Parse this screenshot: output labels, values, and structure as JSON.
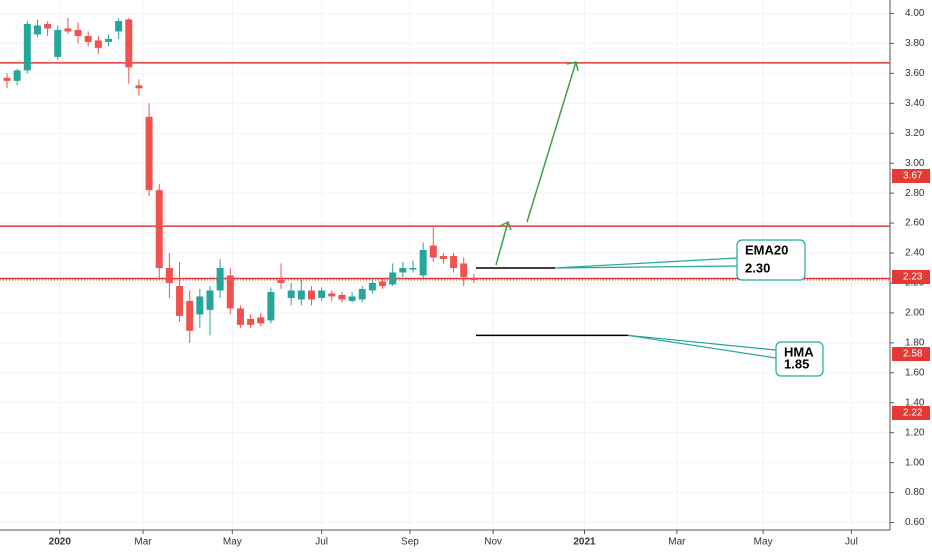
{
  "chart_data": {
    "type": "candlestick",
    "x": [
      0,
      1,
      2,
      3,
      4,
      5,
      6,
      7,
      8,
      9,
      10,
      11,
      12,
      13,
      14,
      15,
      16,
      17,
      18,
      19,
      20,
      21,
      22,
      23,
      24,
      25,
      26,
      27,
      28,
      29,
      30,
      31,
      32,
      33,
      34,
      35,
      36,
      37,
      38,
      39,
      40,
      41,
      42,
      43,
      44,
      45,
      46
    ],
    "open": [
      3.57,
      3.55,
      3.62,
      3.86,
      3.93,
      3.71,
      3.9,
      3.89,
      3.85,
      3.82,
      3.81,
      3.88,
      3.96,
      3.52,
      3.31,
      2.82,
      2.3,
      2.18,
      2.08,
      1.99,
      2.02,
      2.15,
      2.25,
      2.03,
      1.96,
      1.97,
      1.95,
      2.22,
      2.1,
      2.09,
      2.15,
      2.1,
      2.13,
      2.12,
      2.08,
      2.09,
      2.15,
      2.21,
      2.19,
      2.27,
      2.29,
      2.25,
      2.45,
      2.38,
      2.38,
      2.33,
      2.23
    ],
    "high": [
      3.6,
      3.63,
      3.95,
      3.96,
      3.95,
      3.92,
      3.97,
      3.94,
      3.88,
      3.85,
      3.86,
      3.97,
      3.97,
      3.56,
      3.4,
      2.86,
      2.4,
      2.34,
      2.15,
      2.16,
      2.18,
      2.36,
      2.3,
      2.05,
      1.99,
      2.0,
      2.17,
      2.33,
      2.2,
      2.22,
      2.18,
      2.17,
      2.15,
      2.14,
      2.14,
      2.18,
      2.22,
      2.23,
      2.33,
      2.34,
      2.35,
      2.47,
      2.57,
      2.4,
      2.4,
      2.37,
      2.26
    ],
    "low": [
      3.5,
      3.52,
      3.6,
      3.84,
      3.85,
      3.69,
      3.86,
      3.8,
      3.78,
      3.73,
      3.78,
      3.83,
      3.53,
      3.45,
      2.78,
      2.22,
      2.1,
      1.94,
      1.8,
      1.9,
      1.85,
      2.1,
      1.99,
      1.9,
      1.9,
      1.91,
      1.93,
      2.16,
      2.05,
      2.05,
      2.05,
      2.08,
      2.08,
      2.07,
      2.07,
      2.07,
      2.13,
      2.16,
      2.18,
      2.24,
      2.27,
      2.23,
      2.34,
      2.33,
      2.27,
      2.18,
      2.2
    ],
    "close": [
      3.55,
      3.62,
      3.93,
      3.92,
      3.9,
      3.89,
      3.88,
      3.85,
      3.81,
      3.77,
      3.83,
      3.95,
      3.64,
      3.5,
      2.82,
      2.3,
      2.2,
      1.98,
      1.88,
      2.11,
      2.15,
      2.3,
      2.03,
      1.92,
      1.92,
      1.93,
      2.14,
      2.2,
      2.15,
      2.15,
      2.09,
      2.15,
      2.11,
      2.09,
      2.11,
      2.16,
      2.2,
      2.18,
      2.27,
      2.3,
      2.3,
      2.42,
      2.37,
      2.36,
      2.3,
      2.24,
      2.22
    ],
    "up_color": "#26a69a",
    "down_color": "#ef5350",
    "xlim": [
      -0.69,
      87.0
    ],
    "xticks": [
      {
        "value": 5.2,
        "label": "2020"
      },
      {
        "value": 13.4,
        "label": "Mar"
      },
      {
        "value": 22.2,
        "label": "May"
      },
      {
        "value": 31.0,
        "label": "Jul"
      },
      {
        "value": 39.7,
        "label": "Sep"
      },
      {
        "value": 47.9,
        "label": "Nov"
      },
      {
        "value": 56.9,
        "label": "2021"
      },
      {
        "value": 66.0,
        "label": "Mar"
      },
      {
        "value": 74.5,
        "label": "May"
      },
      {
        "value": 83.2,
        "label": "Jul"
      }
    ],
    "ylim": [
      0.55,
      4.09
    ],
    "yticks": [
      {
        "value": 0.6,
        "label": "0.60"
      },
      {
        "value": 0.8,
        "label": "0.80"
      },
      {
        "value": 1.0,
        "label": "1.00"
      },
      {
        "value": 1.2,
        "label": "1.20"
      },
      {
        "value": 1.4,
        "label": "1.40"
      },
      {
        "value": 1.6,
        "label": "1.60"
      },
      {
        "value": 1.8,
        "label": "1.80"
      },
      {
        "value": 2.0,
        "label": "2.00"
      },
      {
        "value": 2.2,
        "label": "2.20"
      },
      {
        "value": 2.4,
        "label": "2.40"
      },
      {
        "value": 2.6,
        "label": "2.60"
      },
      {
        "value": 2.8,
        "label": "2.80"
      },
      {
        "value": 3.0,
        "label": "3.00"
      },
      {
        "value": 3.2,
        "label": "3.20"
      },
      {
        "value": 3.4,
        "label": "3.40"
      },
      {
        "value": 3.6,
        "label": "3.60"
      },
      {
        "value": 3.8,
        "label": "3.80"
      },
      {
        "value": 4.0,
        "label": "4.00"
      }
    ],
    "grid": true,
    "level_color": "#e53935",
    "levels": [
      3.67,
      2.58,
      2.23
    ],
    "price_line": 2.22,
    "price_tags": [
      3.67,
      2.23,
      2.58,
      2.22
    ],
    "annotations": [
      {
        "text": "EMA20",
        "value": 2.3,
        "value_label": "2.30"
      },
      {
        "text": "HMA",
        "value": 1.85,
        "value_label": "1.85"
      }
    ]
  }
}
